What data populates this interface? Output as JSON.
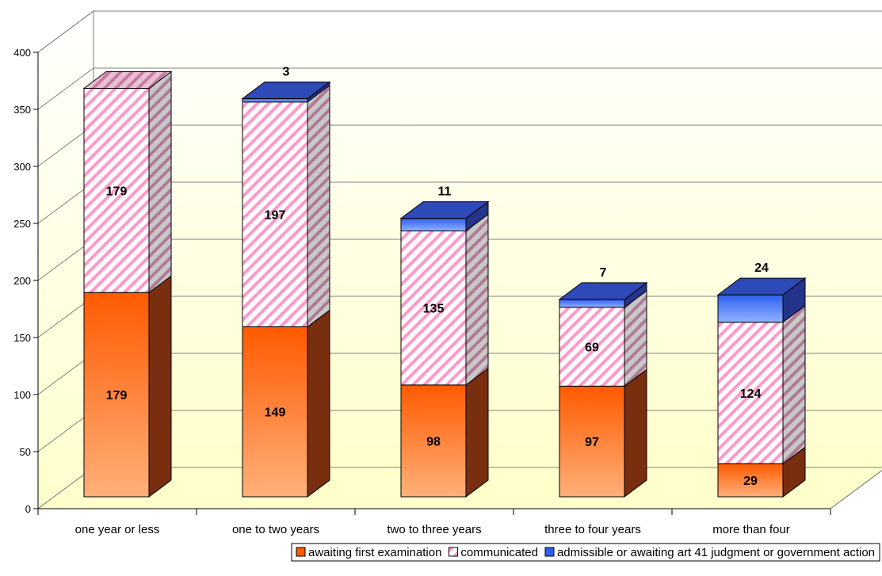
{
  "chart_data": {
    "type": "bar",
    "stacked": true,
    "three_d": true,
    "categories": [
      "one year or less",
      "one to two years",
      "two to three years",
      "three to four years",
      "more than four"
    ],
    "series": [
      {
        "name": "awaiting first examination",
        "values": [
          179,
          149,
          98,
          97,
          29
        ],
        "color": "#ff6a13",
        "pattern": "gradient"
      },
      {
        "name": "communicated",
        "values": [
          179,
          197,
          135,
          69,
          124
        ],
        "color": "#ff99cc",
        "pattern": "diagonal-stripes"
      },
      {
        "name": "admissible or awaiting art 41 judgment or government action",
        "values": [
          0,
          3,
          11,
          7,
          24
        ],
        "color": "#3366ff",
        "pattern": "gradient"
      }
    ],
    "data_labels": [
      [
        "179",
        "179",
        ""
      ],
      [
        "149",
        "197",
        "3"
      ],
      [
        "98",
        "135",
        "11"
      ],
      [
        "97",
        "69",
        "7"
      ],
      [
        "29",
        "124",
        "24"
      ]
    ],
    "title": "",
    "xlabel": "",
    "ylabel": "",
    "ylim": [
      0,
      400
    ],
    "yticks": [
      "0",
      "50",
      "100",
      "150",
      "200",
      "250",
      "300",
      "350",
      "400"
    ],
    "grid": true,
    "legend_position": "bottom",
    "colors": {
      "back_wall_top": "#ffffff",
      "back_wall_bottom": "#ffffcc",
      "floor": "#ffffcc",
      "orange_light": "#ffb07a",
      "orange_dark": "#ff5a00",
      "orange_side": "#7a2e10",
      "pink": "#ff99cc",
      "pink_side": "#9c9c9c",
      "blue_light": "#8fb2ff",
      "blue_dark": "#2f5fef",
      "blue_side": "#24348a"
    }
  }
}
